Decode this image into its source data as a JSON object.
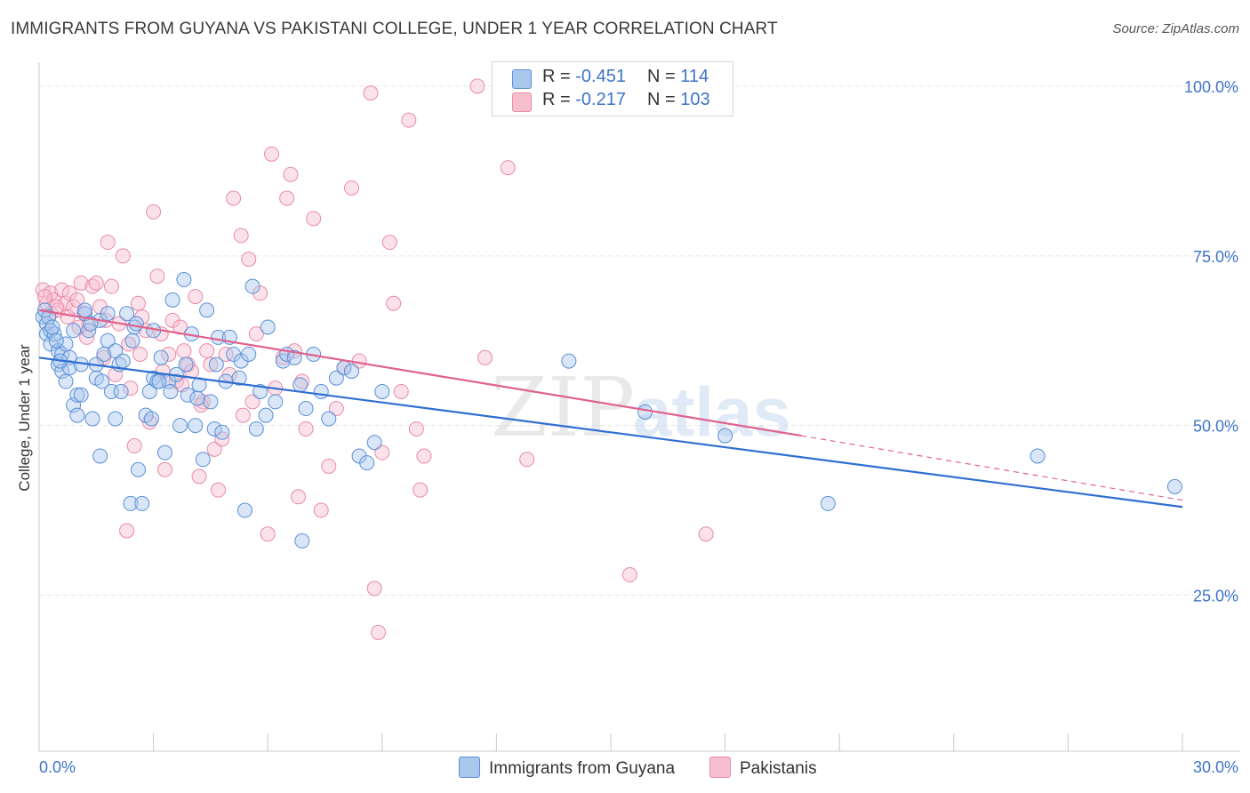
{
  "header": {
    "title": "IMMIGRANTS FROM GUYANA VS PAKISTANI COLLEGE, UNDER 1 YEAR CORRELATION CHART",
    "source": "Source: ZipAtlas.com"
  },
  "legend": {
    "rows": [
      {
        "r_label": "R =",
        "r_value": "-0.451",
        "n_label": "N =",
        "n_value": "114"
      },
      {
        "r_label": "R =",
        "r_value": "-0.217",
        "n_label": "N =",
        "n_value": "103"
      }
    ],
    "bottom": [
      "Immigrants from Guyana",
      "Pakistanis"
    ]
  },
  "watermark": {
    "left": "ZIP",
    "right": "atlas"
  },
  "colors": {
    "guyana_fill": "#a9c8ee",
    "guyana_stroke": "#5b8fd6",
    "guyana_line": "#2f6fd2",
    "pakistani_fill": "#f6bfd0",
    "pakistani_stroke": "#ea8aa8",
    "pakistani_line": "#e0628d",
    "tick_label": "#3e73c9",
    "grid": "#e3e3e3"
  },
  "chart_data": {
    "type": "scatter",
    "title": "IMMIGRANTS FROM GUYANA VS PAKISTANI COLLEGE, UNDER 1 YEAR CORRELATION CHART",
    "xlabel": "",
    "ylabel": "College, Under 1 year",
    "xlim": [
      0,
      30
    ],
    "ylim": [
      0,
      105
    ],
    "x_tick_labels": [
      "0.0%",
      "30.0%"
    ],
    "y_tick_labels": [
      "100.0%",
      "75.0%",
      "50.0%",
      "25.0%"
    ],
    "y_ticks": [
      100,
      75,
      50,
      25
    ],
    "grid": true,
    "legend_position": "top-center",
    "series": [
      {
        "name": "Immigrants from Guyana",
        "r": -0.451,
        "n": 114,
        "trend": {
          "x": [
            0,
            30
          ],
          "y": [
            60.0,
            38.0
          ]
        },
        "points": [
          [
            0.1,
            66.0
          ],
          [
            0.2,
            65.0
          ],
          [
            0.2,
            63.5
          ],
          [
            0.3,
            64.0
          ],
          [
            0.3,
            62.0
          ],
          [
            0.4,
            63.5
          ],
          [
            0.5,
            61.0
          ],
          [
            0.5,
            59.0
          ],
          [
            0.6,
            58.0
          ],
          [
            0.6,
            60.5
          ],
          [
            0.7,
            56.5
          ],
          [
            0.7,
            62.0
          ],
          [
            0.8,
            60.0
          ],
          [
            0.8,
            58.5
          ],
          [
            0.9,
            64.0
          ],
          [
            0.9,
            53.0
          ],
          [
            1.0,
            54.5
          ],
          [
            1.0,
            51.5
          ],
          [
            1.1,
            54.5
          ],
          [
            1.1,
            59.0
          ],
          [
            1.2,
            66.5
          ],
          [
            1.2,
            67.0
          ],
          [
            1.3,
            64.0
          ],
          [
            1.4,
            51.0
          ],
          [
            1.5,
            59.0
          ],
          [
            1.5,
            57.0
          ],
          [
            1.6,
            45.5
          ],
          [
            1.6,
            65.5
          ],
          [
            1.7,
            60.5
          ],
          [
            1.8,
            66.5
          ],
          [
            1.8,
            62.5
          ],
          [
            1.9,
            55.0
          ],
          [
            2.0,
            51.0
          ],
          [
            2.0,
            61.0
          ],
          [
            2.1,
            59.0
          ],
          [
            2.2,
            59.5
          ],
          [
            2.3,
            66.5
          ],
          [
            2.4,
            38.5
          ],
          [
            2.5,
            64.5
          ],
          [
            2.6,
            43.5
          ],
          [
            2.7,
            38.5
          ],
          [
            2.8,
            51.5
          ],
          [
            2.9,
            55.0
          ],
          [
            3.0,
            57.0
          ],
          [
            3.0,
            64.0
          ],
          [
            3.1,
            56.5
          ],
          [
            3.2,
            60.0
          ],
          [
            3.3,
            46.0
          ],
          [
            3.4,
            56.5
          ],
          [
            3.5,
            68.5
          ],
          [
            3.6,
            57.5
          ],
          [
            3.7,
            50.0
          ],
          [
            3.8,
            71.5
          ],
          [
            3.9,
            54.5
          ],
          [
            4.0,
            63.5
          ],
          [
            4.1,
            50.0
          ],
          [
            4.2,
            56.0
          ],
          [
            4.3,
            45.0
          ],
          [
            4.4,
            67.0
          ],
          [
            4.5,
            53.5
          ],
          [
            4.6,
            49.5
          ],
          [
            4.7,
            63.0
          ],
          [
            4.8,
            49.0
          ],
          [
            4.9,
            56.5
          ],
          [
            5.0,
            63.0
          ],
          [
            5.1,
            60.5
          ],
          [
            5.3,
            59.5
          ],
          [
            5.4,
            37.5
          ],
          [
            5.5,
            60.5
          ],
          [
            5.6,
            70.5
          ],
          [
            5.7,
            49.5
          ],
          [
            5.8,
            55.0
          ],
          [
            6.0,
            64.5
          ],
          [
            6.2,
            53.5
          ],
          [
            6.4,
            59.5
          ],
          [
            6.5,
            60.5
          ],
          [
            6.7,
            60.0
          ],
          [
            6.9,
            33.0
          ],
          [
            7.0,
            52.5
          ],
          [
            7.2,
            60.5
          ],
          [
            7.4,
            55.0
          ],
          [
            7.6,
            51.0
          ],
          [
            7.8,
            57.0
          ],
          [
            8.0,
            58.5
          ],
          [
            8.2,
            58.0
          ],
          [
            8.4,
            45.5
          ],
          [
            8.6,
            44.5
          ],
          [
            8.8,
            47.5
          ],
          [
            9.0,
            55.0
          ],
          [
            13.9,
            59.5
          ],
          [
            15.9,
            52.0
          ],
          [
            18.0,
            48.5
          ],
          [
            20.7,
            38.5
          ],
          [
            26.2,
            45.5
          ],
          [
            29.8,
            41.0
          ],
          [
            0.15,
            67.0
          ],
          [
            0.25,
            66.0
          ],
          [
            0.35,
            64.5
          ],
          [
            0.45,
            62.5
          ],
          [
            0.55,
            59.5
          ],
          [
            1.35,
            65.0
          ],
          [
            1.65,
            56.5
          ],
          [
            2.15,
            55.0
          ],
          [
            2.45,
            62.5
          ],
          [
            2.55,
            65.0
          ],
          [
            2.95,
            51.0
          ],
          [
            3.15,
            56.5
          ],
          [
            3.45,
            55.0
          ],
          [
            3.85,
            59.0
          ],
          [
            4.15,
            54.0
          ],
          [
            4.65,
            59.0
          ],
          [
            5.25,
            57.0
          ],
          [
            5.95,
            51.5
          ],
          [
            6.85,
            56.0
          ]
        ]
      },
      {
        "name": "Pakistanis",
        "r": -0.217,
        "n": 103,
        "trend": {
          "x": [
            0,
            20
          ],
          "y": [
            67.0,
            48.5
          ]
        },
        "trend_dashed": {
          "x": [
            20,
            30
          ],
          "y": [
            48.5,
            39.0
          ]
        },
        "points": [
          [
            0.1,
            70.0
          ],
          [
            0.2,
            68.0
          ],
          [
            0.3,
            66.5
          ],
          [
            0.3,
            69.5
          ],
          [
            0.4,
            68.5
          ],
          [
            0.5,
            67.0
          ],
          [
            0.6,
            70.0
          ],
          [
            0.7,
            68.0
          ],
          [
            0.8,
            69.5
          ],
          [
            0.9,
            67.5
          ],
          [
            1.0,
            68.5
          ],
          [
            1.1,
            71.0
          ],
          [
            1.2,
            66.5
          ],
          [
            1.3,
            65.0
          ],
          [
            1.4,
            70.5
          ],
          [
            1.5,
            71.0
          ],
          [
            1.6,
            67.5
          ],
          [
            1.7,
            60.0
          ],
          [
            1.8,
            77.0
          ],
          [
            1.9,
            70.5
          ],
          [
            2.0,
            57.5
          ],
          [
            2.1,
            65.0
          ],
          [
            2.2,
            75.0
          ],
          [
            2.3,
            34.5
          ],
          [
            2.4,
            55.5
          ],
          [
            2.5,
            47.0
          ],
          [
            2.6,
            68.0
          ],
          [
            2.7,
            66.0
          ],
          [
            2.8,
            64.0
          ],
          [
            2.9,
            50.5
          ],
          [
            3.0,
            81.5
          ],
          [
            3.1,
            72.0
          ],
          [
            3.2,
            63.5
          ],
          [
            3.3,
            43.5
          ],
          [
            3.4,
            60.5
          ],
          [
            3.5,
            65.5
          ],
          [
            3.6,
            56.5
          ],
          [
            3.7,
            64.5
          ],
          [
            3.8,
            61.0
          ],
          [
            3.9,
            59.0
          ],
          [
            4.0,
            58.0
          ],
          [
            4.1,
            69.0
          ],
          [
            4.2,
            42.5
          ],
          [
            4.3,
            53.5
          ],
          [
            4.4,
            61.0
          ],
          [
            4.5,
            59.0
          ],
          [
            4.6,
            46.5
          ],
          [
            4.7,
            40.5
          ],
          [
            4.8,
            48.0
          ],
          [
            4.9,
            60.5
          ],
          [
            5.0,
            57.5
          ],
          [
            5.1,
            83.5
          ],
          [
            5.3,
            78.0
          ],
          [
            5.5,
            74.5
          ],
          [
            5.6,
            53.5
          ],
          [
            5.7,
            63.5
          ],
          [
            5.8,
            69.5
          ],
          [
            6.0,
            34.0
          ],
          [
            6.1,
            90.0
          ],
          [
            6.2,
            55.5
          ],
          [
            6.4,
            60.0
          ],
          [
            6.5,
            83.5
          ],
          [
            6.6,
            87.0
          ],
          [
            6.7,
            61.0
          ],
          [
            6.8,
            39.5
          ],
          [
            6.9,
            56.5
          ],
          [
            7.0,
            49.5
          ],
          [
            7.2,
            80.5
          ],
          [
            7.4,
            37.5
          ],
          [
            7.6,
            44.0
          ],
          [
            7.8,
            52.5
          ],
          [
            8.0,
            58.5
          ],
          [
            8.2,
            85.0
          ],
          [
            8.4,
            59.5
          ],
          [
            8.7,
            99.0
          ],
          [
            8.8,
            26.0
          ],
          [
            8.9,
            19.5
          ],
          [
            9.0,
            46.0
          ],
          [
            9.2,
            77.0
          ],
          [
            9.3,
            68.0
          ],
          [
            9.5,
            55.0
          ],
          [
            9.7,
            95.0
          ],
          [
            9.9,
            49.5
          ],
          [
            10.1,
            45.5
          ],
          [
            10.0,
            40.5
          ],
          [
            11.5,
            100.0
          ],
          [
            11.7,
            60.0
          ],
          [
            12.3,
            88.0
          ],
          [
            12.8,
            45.0
          ],
          [
            15.5,
            28.0
          ],
          [
            17.5,
            34.0
          ],
          [
            0.15,
            69.0
          ],
          [
            0.45,
            67.5
          ],
          [
            0.75,
            66.0
          ],
          [
            1.05,
            64.5
          ],
          [
            1.25,
            63.0
          ],
          [
            1.75,
            65.5
          ],
          [
            2.35,
            62.0
          ],
          [
            2.65,
            60.5
          ],
          [
            3.25,
            58.0
          ],
          [
            3.75,
            56.0
          ],
          [
            4.25,
            53.0
          ],
          [
            5.35,
            51.5
          ]
        ]
      }
    ]
  }
}
